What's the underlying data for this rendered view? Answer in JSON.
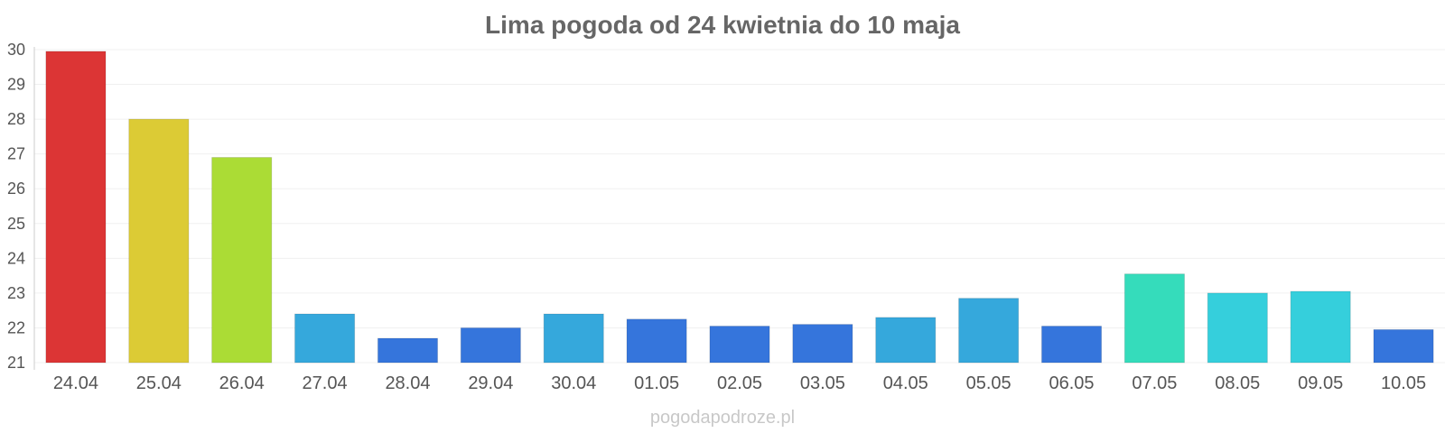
{
  "watermark": "pogodapodroze.pl",
  "chart_data": {
    "type": "bar",
    "title": "Lima pogoda od 24 kwietnia do 10 maja",
    "xlabel": "",
    "ylabel": "",
    "ylim": [
      21,
      30
    ],
    "yticks": [
      "21",
      "22",
      "23",
      "24",
      "25",
      "26",
      "27",
      "28",
      "29",
      "30"
    ],
    "grid": true,
    "categories": [
      "24.04",
      "25.04",
      "26.04",
      "27.04",
      "28.04",
      "29.04",
      "30.04",
      "01.05",
      "02.05",
      "03.05",
      "04.05",
      "05.05",
      "06.05",
      "07.05",
      "08.05",
      "09.05",
      "10.05"
    ],
    "values": [
      29.95,
      28.0,
      26.9,
      22.4,
      21.7,
      22.0,
      22.4,
      22.25,
      22.05,
      22.1,
      22.3,
      22.85,
      22.05,
      23.55,
      23.0,
      23.05,
      21.95
    ],
    "colors": [
      "#dc3535",
      "#dccb35",
      "#abdc35",
      "#35a8dc",
      "#3575dc",
      "#3575dc",
      "#35a8dc",
      "#3575dc",
      "#3575dc",
      "#3575dc",
      "#35a8dc",
      "#35a8dc",
      "#3575dc",
      "#35dcbb",
      "#35cfdc",
      "#35cfdc",
      "#3575dc"
    ]
  }
}
